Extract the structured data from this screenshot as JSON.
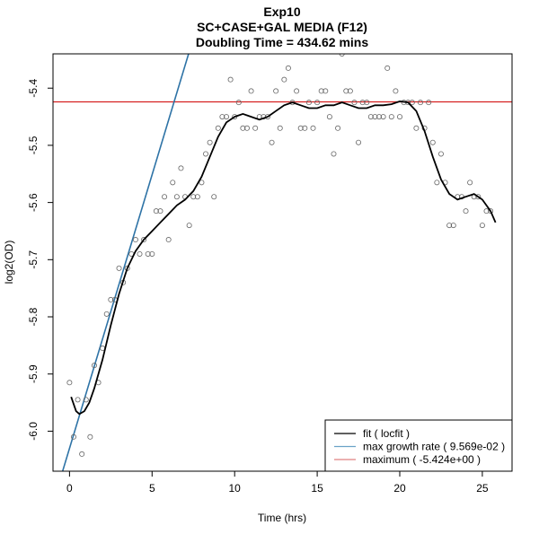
{
  "chart_data": {
    "type": "scatter",
    "title_lines": [
      "Exp10",
      "SC+CASE+GAL MEDIA (F12)",
      "Doubling Time = 434.62 mins"
    ],
    "xlabel": "Time (hrs)",
    "ylabel": "log2(OD)",
    "xlim": [
      -1.0,
      26.8
    ],
    "ylim": [
      -6.07,
      -5.34
    ],
    "xticks": [
      0,
      5,
      10,
      15,
      20,
      25
    ],
    "yticks": [
      -6.0,
      -5.9,
      -5.8,
      -5.7,
      -5.6,
      -5.5,
      -5.4
    ],
    "ytick_labels": [
      "-6.0",
      "-5.9",
      "-5.8",
      "-5.7",
      "-5.6",
      "-5.5",
      "-5.4"
    ],
    "grid": false,
    "legend_position": "bottom-right",
    "points": [
      [
        0.0,
        -5.915
      ],
      [
        0.25,
        -6.01
      ],
      [
        0.5,
        -5.945
      ],
      [
        0.75,
        -6.04
      ],
      [
        1.0,
        -5.945
      ],
      [
        1.25,
        -6.01
      ],
      [
        1.5,
        -5.885
      ],
      [
        1.75,
        -5.915
      ],
      [
        2.0,
        -5.855
      ],
      [
        2.25,
        -5.795
      ],
      [
        2.5,
        -5.77
      ],
      [
        2.75,
        -5.77
      ],
      [
        3.0,
        -5.715
      ],
      [
        3.25,
        -5.74
      ],
      [
        3.5,
        -5.715
      ],
      [
        3.75,
        -5.69
      ],
      [
        4.0,
        -5.665
      ],
      [
        4.25,
        -5.69
      ],
      [
        4.5,
        -5.665
      ],
      [
        4.75,
        -5.69
      ],
      [
        5.0,
        -5.69
      ],
      [
        5.25,
        -5.615
      ],
      [
        5.5,
        -5.615
      ],
      [
        5.75,
        -5.59
      ],
      [
        6.0,
        -5.665
      ],
      [
        6.25,
        -5.565
      ],
      [
        6.5,
        -5.59
      ],
      [
        6.75,
        -5.54
      ],
      [
        7.0,
        -5.59
      ],
      [
        7.25,
        -5.64
      ],
      [
        7.5,
        -5.59
      ],
      [
        7.75,
        -5.59
      ],
      [
        8.0,
        -5.565
      ],
      [
        8.25,
        -5.515
      ],
      [
        8.5,
        -5.495
      ],
      [
        8.75,
        -5.59
      ],
      [
        9.0,
        -5.47
      ],
      [
        9.25,
        -5.45
      ],
      [
        9.5,
        -5.45
      ],
      [
        9.75,
        -5.385
      ],
      [
        10.0,
        -5.45
      ],
      [
        10.25,
        -5.425
      ],
      [
        10.5,
        -5.47
      ],
      [
        10.75,
        -5.47
      ],
      [
        11.0,
        -5.405
      ],
      [
        11.25,
        -5.47
      ],
      [
        11.5,
        -5.45
      ],
      [
        11.75,
        -5.45
      ],
      [
        12.0,
        -5.45
      ],
      [
        12.25,
        -5.495
      ],
      [
        12.5,
        -5.405
      ],
      [
        12.75,
        -5.47
      ],
      [
        13.0,
        -5.385
      ],
      [
        13.25,
        -5.365
      ],
      [
        13.5,
        -5.425
      ],
      [
        13.75,
        -5.405
      ],
      [
        14.0,
        -5.47
      ],
      [
        14.25,
        -5.47
      ],
      [
        14.5,
        -5.425
      ],
      [
        14.75,
        -5.47
      ],
      [
        15.0,
        -5.425
      ],
      [
        15.25,
        -5.405
      ],
      [
        15.5,
        -5.405
      ],
      [
        15.75,
        -5.45
      ],
      [
        16.0,
        -5.515
      ],
      [
        16.25,
        -5.47
      ],
      [
        16.5,
        -5.34
      ],
      [
        16.75,
        -5.405
      ],
      [
        17.0,
        -5.405
      ],
      [
        17.25,
        -5.425
      ],
      [
        17.5,
        -5.495
      ],
      [
        17.75,
        -5.425
      ],
      [
        18.0,
        -5.425
      ],
      [
        18.25,
        -5.45
      ],
      [
        18.5,
        -5.45
      ],
      [
        18.75,
        -5.45
      ],
      [
        19.0,
        -5.45
      ],
      [
        19.25,
        -5.365
      ],
      [
        19.5,
        -5.45
      ],
      [
        19.75,
        -5.405
      ],
      [
        20.0,
        -5.45
      ],
      [
        20.25,
        -5.425
      ],
      [
        20.5,
        -5.425
      ],
      [
        20.75,
        -5.425
      ],
      [
        21.0,
        -5.47
      ],
      [
        21.25,
        -5.425
      ],
      [
        21.5,
        -5.47
      ],
      [
        21.75,
        -5.425
      ],
      [
        22.0,
        -5.495
      ],
      [
        22.25,
        -5.565
      ],
      [
        22.5,
        -5.515
      ],
      [
        22.75,
        -5.565
      ],
      [
        23.0,
        -5.64
      ],
      [
        23.25,
        -5.64
      ],
      [
        23.5,
        -5.59
      ],
      [
        23.75,
        -5.59
      ],
      [
        24.0,
        -5.615
      ],
      [
        24.25,
        -5.565
      ],
      [
        24.5,
        -5.59
      ],
      [
        24.75,
        -5.59
      ],
      [
        25.0,
        -5.64
      ],
      [
        25.25,
        -5.615
      ],
      [
        25.5,
        -5.615
      ]
    ],
    "fit_curve": [
      [
        0.1,
        -5.94
      ],
      [
        0.4,
        -5.965
      ],
      [
        0.6,
        -5.97
      ],
      [
        0.9,
        -5.965
      ],
      [
        1.2,
        -5.95
      ],
      [
        1.5,
        -5.925
      ],
      [
        2.0,
        -5.875
      ],
      [
        2.5,
        -5.815
      ],
      [
        3.0,
        -5.76
      ],
      [
        3.5,
        -5.715
      ],
      [
        4.0,
        -5.685
      ],
      [
        4.5,
        -5.665
      ],
      [
        5.0,
        -5.65
      ],
      [
        5.5,
        -5.635
      ],
      [
        6.0,
        -5.62
      ],
      [
        6.5,
        -5.605
      ],
      [
        7.0,
        -5.595
      ],
      [
        7.5,
        -5.58
      ],
      [
        8.0,
        -5.555
      ],
      [
        8.5,
        -5.52
      ],
      [
        9.0,
        -5.485
      ],
      [
        9.5,
        -5.46
      ],
      [
        10.0,
        -5.45
      ],
      [
        10.5,
        -5.445
      ],
      [
        11.0,
        -5.45
      ],
      [
        11.5,
        -5.455
      ],
      [
        12.0,
        -5.45
      ],
      [
        12.5,
        -5.44
      ],
      [
        13.0,
        -5.43
      ],
      [
        13.5,
        -5.425
      ],
      [
        14.0,
        -5.43
      ],
      [
        14.5,
        -5.435
      ],
      [
        15.0,
        -5.435
      ],
      [
        15.5,
        -5.43
      ],
      [
        16.0,
        -5.43
      ],
      [
        16.5,
        -5.425
      ],
      [
        17.0,
        -5.43
      ],
      [
        17.5,
        -5.435
      ],
      [
        18.0,
        -5.435
      ],
      [
        18.5,
        -5.43
      ],
      [
        19.0,
        -5.43
      ],
      [
        19.5,
        -5.428
      ],
      [
        20.0,
        -5.423
      ],
      [
        20.5,
        -5.425
      ],
      [
        21.0,
        -5.44
      ],
      [
        21.5,
        -5.475
      ],
      [
        22.0,
        -5.52
      ],
      [
        22.5,
        -5.56
      ],
      [
        23.0,
        -5.585
      ],
      [
        23.5,
        -5.595
      ],
      [
        24.0,
        -5.59
      ],
      [
        24.5,
        -5.585
      ],
      [
        25.0,
        -5.595
      ],
      [
        25.5,
        -5.615
      ],
      [
        25.8,
        -5.635
      ]
    ],
    "max_growth_line": {
      "slope": 0.09569,
      "intercept": -6.03,
      "x_range": [
        -0.5,
        7.7
      ]
    },
    "maximum_line": {
      "y": -5.424
    },
    "legend": [
      {
        "label": "fit ( locfit )",
        "color": "#000000"
      },
      {
        "label": "max growth rate ( 9.569e-02 )",
        "color": "#6aa2c8"
      },
      {
        "label": "maximum ( -5.424e+00 )",
        "color": "#e08080"
      }
    ],
    "colors": {
      "points": "#666666",
      "fit": "#000000",
      "max_growth": "#2e73a6",
      "maximum": "#d62020"
    }
  }
}
